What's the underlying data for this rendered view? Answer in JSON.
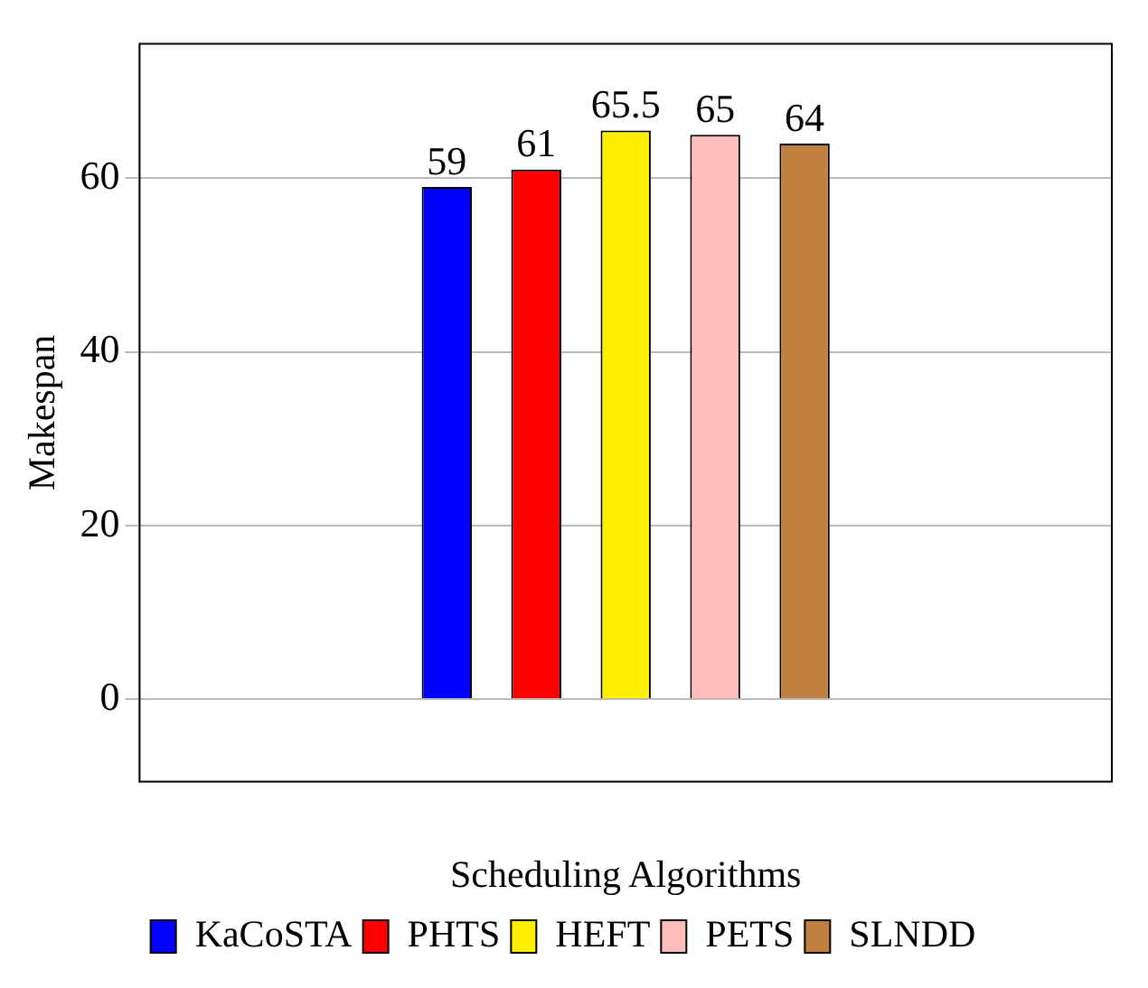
{
  "chart_data": {
    "type": "bar",
    "xlabel": "Scheduling Algorithms",
    "ylabel": "Makespan",
    "categories": [
      null
    ],
    "series": [
      {
        "name": "KaCoSTA",
        "color": "#0000ff",
        "values": [
          59
        ]
      },
      {
        "name": "PHTS",
        "color": "#ff0000",
        "values": [
          61
        ]
      },
      {
        "name": "HEFT",
        "color": "#ffee00",
        "values": [
          65.5
        ]
      },
      {
        "name": "PETS",
        "color": "#ffbcbc",
        "values": [
          65
        ]
      },
      {
        "name": "SLNDD",
        "color": "#bf8040",
        "values": [
          64
        ]
      }
    ],
    "ylim": [
      -9.5,
      75.5
    ],
    "yticks": [
      0,
      20,
      40,
      60
    ],
    "grid": "y",
    "legend": "bottom",
    "data_labels": true
  }
}
